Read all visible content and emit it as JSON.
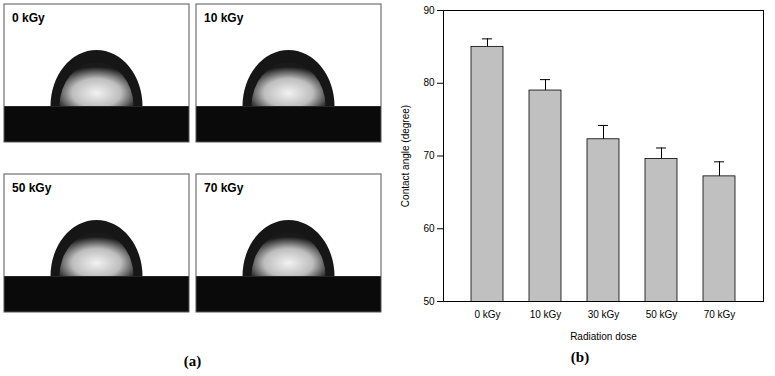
{
  "image_panel": {
    "label": "(a)",
    "images": [
      "0 kGy",
      "10 kGy",
      "50 kGy",
      "70 kGy"
    ]
  },
  "chart_data": {
    "type": "bar",
    "caption": "(b)",
    "x_label": "Radiation dose",
    "y_label": "Contact angle (degree)",
    "categories": [
      "0 kGy",
      "10 kGy",
      "30 kGy",
      "50 kGy",
      "70 kGy"
    ],
    "values": [
      85.0,
      79.0,
      72.3,
      69.6,
      67.2
    ],
    "errors": [
      1.1,
      1.5,
      1.9,
      1.5,
      2.0
    ],
    "color": "#c0c0c0",
    "ylim": [
      50,
      90
    ],
    "yticks": [
      50,
      60,
      70,
      80,
      90
    ],
    "grid": false
  }
}
